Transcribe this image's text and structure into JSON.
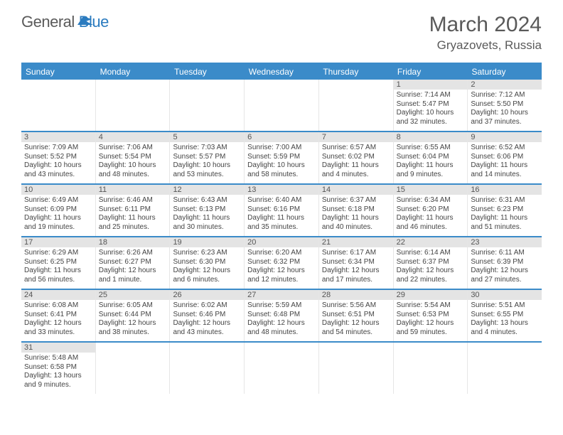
{
  "logo": {
    "text1": "General",
    "text2": "Blue"
  },
  "title": "March 2024",
  "location": "Gryazovets, Russia",
  "colors": {
    "brand_blue": "#3b8bc9",
    "header_text": "#5a5a5a",
    "daynum_bg": "#e4e4e4",
    "cell_border": "#e6e6e6"
  },
  "dayheads": [
    "Sunday",
    "Monday",
    "Tuesday",
    "Wednesday",
    "Thursday",
    "Friday",
    "Saturday"
  ],
  "weeks": [
    [
      {
        "n": "",
        "sr": "",
        "ss": "",
        "dl": ""
      },
      {
        "n": "",
        "sr": "",
        "ss": "",
        "dl": ""
      },
      {
        "n": "",
        "sr": "",
        "ss": "",
        "dl": ""
      },
      {
        "n": "",
        "sr": "",
        "ss": "",
        "dl": ""
      },
      {
        "n": "",
        "sr": "",
        "ss": "",
        "dl": ""
      },
      {
        "n": "1",
        "sr": "Sunrise: 7:14 AM",
        "ss": "Sunset: 5:47 PM",
        "dl": "Daylight: 10 hours and 32 minutes."
      },
      {
        "n": "2",
        "sr": "Sunrise: 7:12 AM",
        "ss": "Sunset: 5:50 PM",
        "dl": "Daylight: 10 hours and 37 minutes."
      }
    ],
    [
      {
        "n": "3",
        "sr": "Sunrise: 7:09 AM",
        "ss": "Sunset: 5:52 PM",
        "dl": "Daylight: 10 hours and 43 minutes."
      },
      {
        "n": "4",
        "sr": "Sunrise: 7:06 AM",
        "ss": "Sunset: 5:54 PM",
        "dl": "Daylight: 10 hours and 48 minutes."
      },
      {
        "n": "5",
        "sr": "Sunrise: 7:03 AM",
        "ss": "Sunset: 5:57 PM",
        "dl": "Daylight: 10 hours and 53 minutes."
      },
      {
        "n": "6",
        "sr": "Sunrise: 7:00 AM",
        "ss": "Sunset: 5:59 PM",
        "dl": "Daylight: 10 hours and 58 minutes."
      },
      {
        "n": "7",
        "sr": "Sunrise: 6:57 AM",
        "ss": "Sunset: 6:02 PM",
        "dl": "Daylight: 11 hours and 4 minutes."
      },
      {
        "n": "8",
        "sr": "Sunrise: 6:55 AM",
        "ss": "Sunset: 6:04 PM",
        "dl": "Daylight: 11 hours and 9 minutes."
      },
      {
        "n": "9",
        "sr": "Sunrise: 6:52 AM",
        "ss": "Sunset: 6:06 PM",
        "dl": "Daylight: 11 hours and 14 minutes."
      }
    ],
    [
      {
        "n": "10",
        "sr": "Sunrise: 6:49 AM",
        "ss": "Sunset: 6:09 PM",
        "dl": "Daylight: 11 hours and 19 minutes."
      },
      {
        "n": "11",
        "sr": "Sunrise: 6:46 AM",
        "ss": "Sunset: 6:11 PM",
        "dl": "Daylight: 11 hours and 25 minutes."
      },
      {
        "n": "12",
        "sr": "Sunrise: 6:43 AM",
        "ss": "Sunset: 6:13 PM",
        "dl": "Daylight: 11 hours and 30 minutes."
      },
      {
        "n": "13",
        "sr": "Sunrise: 6:40 AM",
        "ss": "Sunset: 6:16 PM",
        "dl": "Daylight: 11 hours and 35 minutes."
      },
      {
        "n": "14",
        "sr": "Sunrise: 6:37 AM",
        "ss": "Sunset: 6:18 PM",
        "dl": "Daylight: 11 hours and 40 minutes."
      },
      {
        "n": "15",
        "sr": "Sunrise: 6:34 AM",
        "ss": "Sunset: 6:20 PM",
        "dl": "Daylight: 11 hours and 46 minutes."
      },
      {
        "n": "16",
        "sr": "Sunrise: 6:31 AM",
        "ss": "Sunset: 6:23 PM",
        "dl": "Daylight: 11 hours and 51 minutes."
      }
    ],
    [
      {
        "n": "17",
        "sr": "Sunrise: 6:29 AM",
        "ss": "Sunset: 6:25 PM",
        "dl": "Daylight: 11 hours and 56 minutes."
      },
      {
        "n": "18",
        "sr": "Sunrise: 6:26 AM",
        "ss": "Sunset: 6:27 PM",
        "dl": "Daylight: 12 hours and 1 minute."
      },
      {
        "n": "19",
        "sr": "Sunrise: 6:23 AM",
        "ss": "Sunset: 6:30 PM",
        "dl": "Daylight: 12 hours and 6 minutes."
      },
      {
        "n": "20",
        "sr": "Sunrise: 6:20 AM",
        "ss": "Sunset: 6:32 PM",
        "dl": "Daylight: 12 hours and 12 minutes."
      },
      {
        "n": "21",
        "sr": "Sunrise: 6:17 AM",
        "ss": "Sunset: 6:34 PM",
        "dl": "Daylight: 12 hours and 17 minutes."
      },
      {
        "n": "22",
        "sr": "Sunrise: 6:14 AM",
        "ss": "Sunset: 6:37 PM",
        "dl": "Daylight: 12 hours and 22 minutes."
      },
      {
        "n": "23",
        "sr": "Sunrise: 6:11 AM",
        "ss": "Sunset: 6:39 PM",
        "dl": "Daylight: 12 hours and 27 minutes."
      }
    ],
    [
      {
        "n": "24",
        "sr": "Sunrise: 6:08 AM",
        "ss": "Sunset: 6:41 PM",
        "dl": "Daylight: 12 hours and 33 minutes."
      },
      {
        "n": "25",
        "sr": "Sunrise: 6:05 AM",
        "ss": "Sunset: 6:44 PM",
        "dl": "Daylight: 12 hours and 38 minutes."
      },
      {
        "n": "26",
        "sr": "Sunrise: 6:02 AM",
        "ss": "Sunset: 6:46 PM",
        "dl": "Daylight: 12 hours and 43 minutes."
      },
      {
        "n": "27",
        "sr": "Sunrise: 5:59 AM",
        "ss": "Sunset: 6:48 PM",
        "dl": "Daylight: 12 hours and 48 minutes."
      },
      {
        "n": "28",
        "sr": "Sunrise: 5:56 AM",
        "ss": "Sunset: 6:51 PM",
        "dl": "Daylight: 12 hours and 54 minutes."
      },
      {
        "n": "29",
        "sr": "Sunrise: 5:54 AM",
        "ss": "Sunset: 6:53 PM",
        "dl": "Daylight: 12 hours and 59 minutes."
      },
      {
        "n": "30",
        "sr": "Sunrise: 5:51 AM",
        "ss": "Sunset: 6:55 PM",
        "dl": "Daylight: 13 hours and 4 minutes."
      }
    ],
    [
      {
        "n": "31",
        "sr": "Sunrise: 5:48 AM",
        "ss": "Sunset: 6:58 PM",
        "dl": "Daylight: 13 hours and 9 minutes."
      },
      {
        "n": "",
        "sr": "",
        "ss": "",
        "dl": ""
      },
      {
        "n": "",
        "sr": "",
        "ss": "",
        "dl": ""
      },
      {
        "n": "",
        "sr": "",
        "ss": "",
        "dl": ""
      },
      {
        "n": "",
        "sr": "",
        "ss": "",
        "dl": ""
      },
      {
        "n": "",
        "sr": "",
        "ss": "",
        "dl": ""
      },
      {
        "n": "",
        "sr": "",
        "ss": "",
        "dl": ""
      }
    ]
  ]
}
